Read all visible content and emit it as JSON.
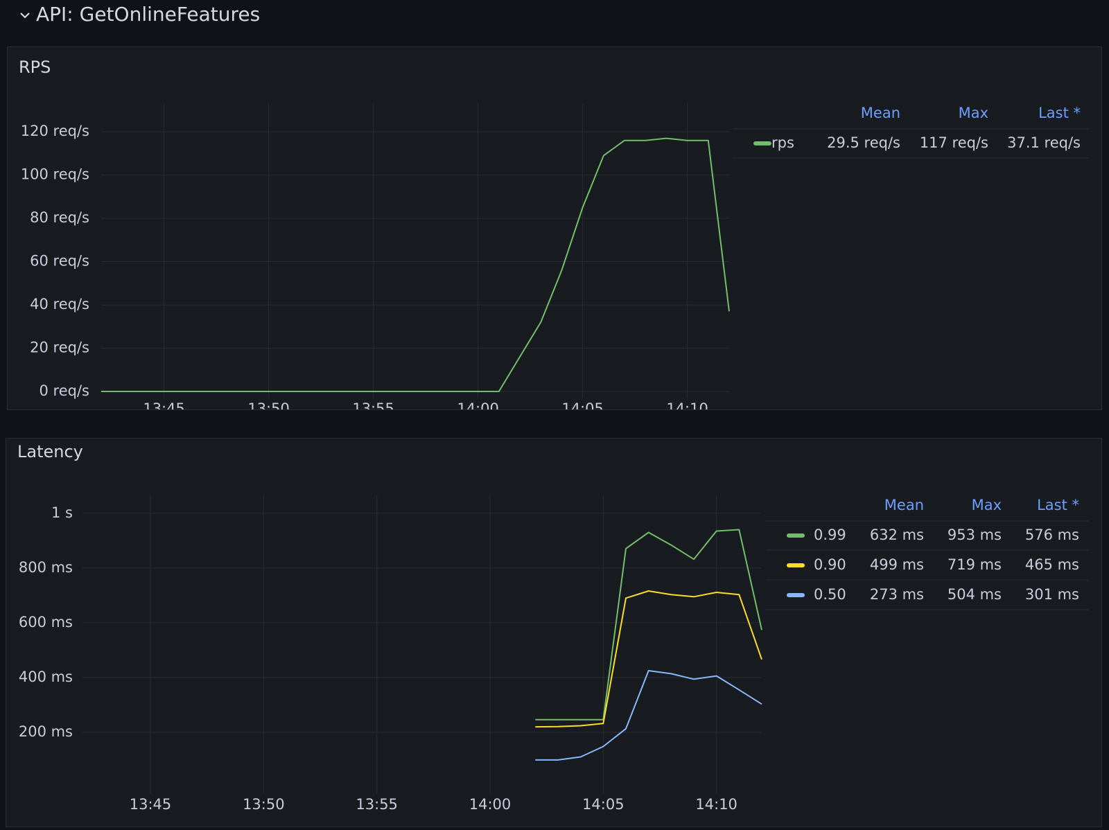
{
  "header": {
    "title": "API: GetOnlineFeatures"
  },
  "chart_data": [
    {
      "type": "line",
      "title": "RPS",
      "x": [
        "13:42",
        "14:01",
        "14:02",
        "14:03",
        "14:04",
        "14:05",
        "14:06",
        "14:07",
        "14:08",
        "14:09",
        "14:10",
        "14:11",
        "14:12"
      ],
      "xlim": [
        "13:42",
        "14:12"
      ],
      "xticks": [
        "13:45",
        "13:50",
        "13:55",
        "14:00",
        "14:05",
        "14:10"
      ],
      "ylim": [
        0,
        130
      ],
      "yticks": [
        {
          "value": 0,
          "label": "0 req/s"
        },
        {
          "value": 20,
          "label": "20 req/s"
        },
        {
          "value": 40,
          "label": "40 req/s"
        },
        {
          "value": 60,
          "label": "60 req/s"
        },
        {
          "value": 80,
          "label": "80 req/s"
        },
        {
          "value": 100,
          "label": "100 req/s"
        },
        {
          "value": 120,
          "label": "120 req/s"
        }
      ],
      "grid": true,
      "legend": {
        "columns": [
          "Mean",
          "Max",
          "Last *"
        ]
      },
      "series": [
        {
          "name": "rps",
          "color": "#73bf69",
          "values": [
            0,
            0,
            16,
            32,
            56,
            85,
            109,
            116,
            116,
            117,
            116,
            116,
            37
          ],
          "stats": [
            "29.5 req/s",
            "117 req/s",
            "37.1 req/s"
          ]
        }
      ]
    },
    {
      "type": "line",
      "title": "Latency",
      "x": [
        "14:02",
        "14:03",
        "14:04",
        "14:05",
        "14:06",
        "14:07",
        "14:08",
        "14:09",
        "14:10",
        "14:11",
        "14:12"
      ],
      "xlim": [
        "13:42",
        "14:12"
      ],
      "xticks": [
        "13:45",
        "13:50",
        "13:55",
        "14:00",
        "14:05",
        "14:10"
      ],
      "ylim": [
        0,
        1040
      ],
      "yticks": [
        {
          "value": 200,
          "label": "200 ms"
        },
        {
          "value": 400,
          "label": "400 ms"
        },
        {
          "value": 600,
          "label": "600 ms"
        },
        {
          "value": 800,
          "label": "800 ms"
        },
        {
          "value": 1000,
          "label": "1 s"
        }
      ],
      "grid": true,
      "legend": {
        "columns": [
          "Mean",
          "Max",
          "Last *"
        ]
      },
      "series": [
        {
          "name": "0.99",
          "color": "#73bf69",
          "values": [
            246,
            246,
            246,
            246,
            871,
            930,
            884,
            832,
            935,
            940,
            574
          ],
          "stats": [
            "632 ms",
            "953 ms",
            "576 ms"
          ]
        },
        {
          "name": "0.90",
          "color": "#fade2a",
          "values": [
            220,
            221,
            224,
            232,
            690,
            716,
            703,
            695,
            711,
            703,
            466
          ],
          "stats": [
            "499 ms",
            "719 ms",
            "465 ms"
          ]
        },
        {
          "name": "0.50",
          "color": "#8ab8ff",
          "values": [
            99,
            99,
            110,
            148,
            213,
            425,
            414,
            394,
            406,
            355,
            303
          ],
          "stats": [
            "273 ms",
            "504 ms",
            "301 ms"
          ]
        }
      ]
    }
  ]
}
